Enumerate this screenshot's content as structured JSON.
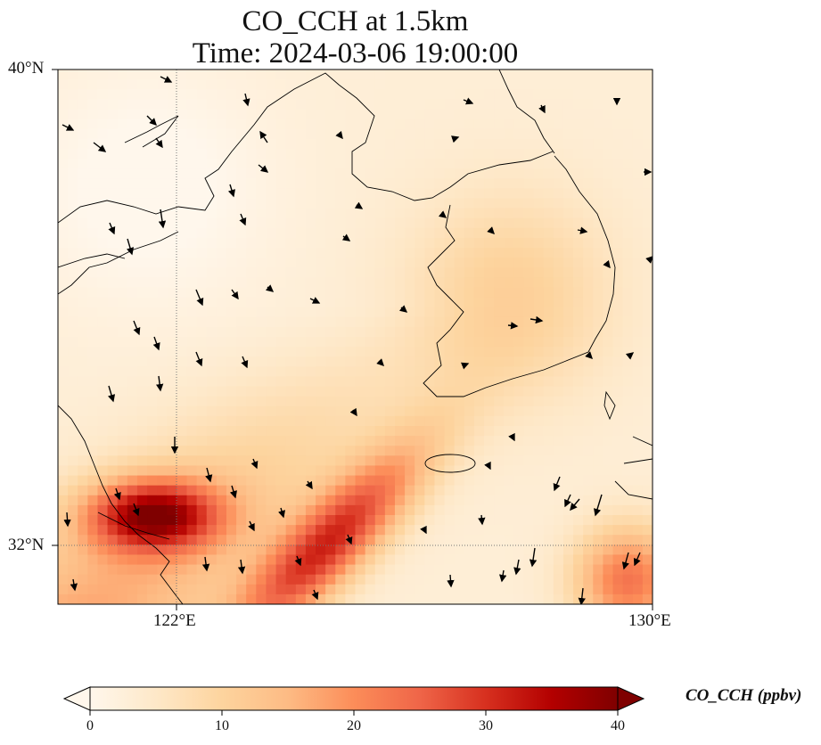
{
  "title": {
    "line1": "CO_CCH at 1.5km",
    "line2": "Time: 2024-03-06 19:00:00"
  },
  "axes": {
    "lat_labels": [
      "40°N",
      "32°N"
    ],
    "lon_labels": [
      "122°E",
      "130°E"
    ],
    "lat_range": [
      31,
      40
    ],
    "lon_range": [
      120,
      130
    ],
    "gridlines": "dotted"
  },
  "colorbar": {
    "label": "CO_CCH (ppbv)",
    "ticks": [
      "0",
      "10",
      "20",
      "30",
      "40"
    ],
    "range": [
      0,
      40
    ],
    "extend": "both",
    "colormap": [
      "#fff7ec",
      "#fee8c8",
      "#fdd49e",
      "#fdbb84",
      "#fc8d59",
      "#ef6548",
      "#d7301f",
      "#b30000",
      "#7f0000"
    ]
  },
  "chart_data": {
    "type": "heatmap",
    "variable": "CO_CCH",
    "units": "ppbv",
    "level": "1.5km",
    "time": "2024-03-06 19:00:00",
    "overlay": "wind vectors",
    "features": [
      {
        "desc": "high CO plume over Yangtze River Delta",
        "lon": 121.6,
        "lat": 32.5,
        "value": 40
      },
      {
        "desc": "southwest-northeast band",
        "lon": 124.3,
        "lat": 31.8,
        "value": 38
      },
      {
        "desc": "plume near Kyushu",
        "lon": 129.5,
        "lat": 31.5,
        "value": 30
      },
      {
        "desc": "Korean Peninsula",
        "lon": 127.5,
        "lat": 36.5,
        "value": 12
      },
      {
        "desc": "Yellow Sea north",
        "lon": 122.5,
        "lat": 38.0,
        "value": 2
      }
    ]
  }
}
